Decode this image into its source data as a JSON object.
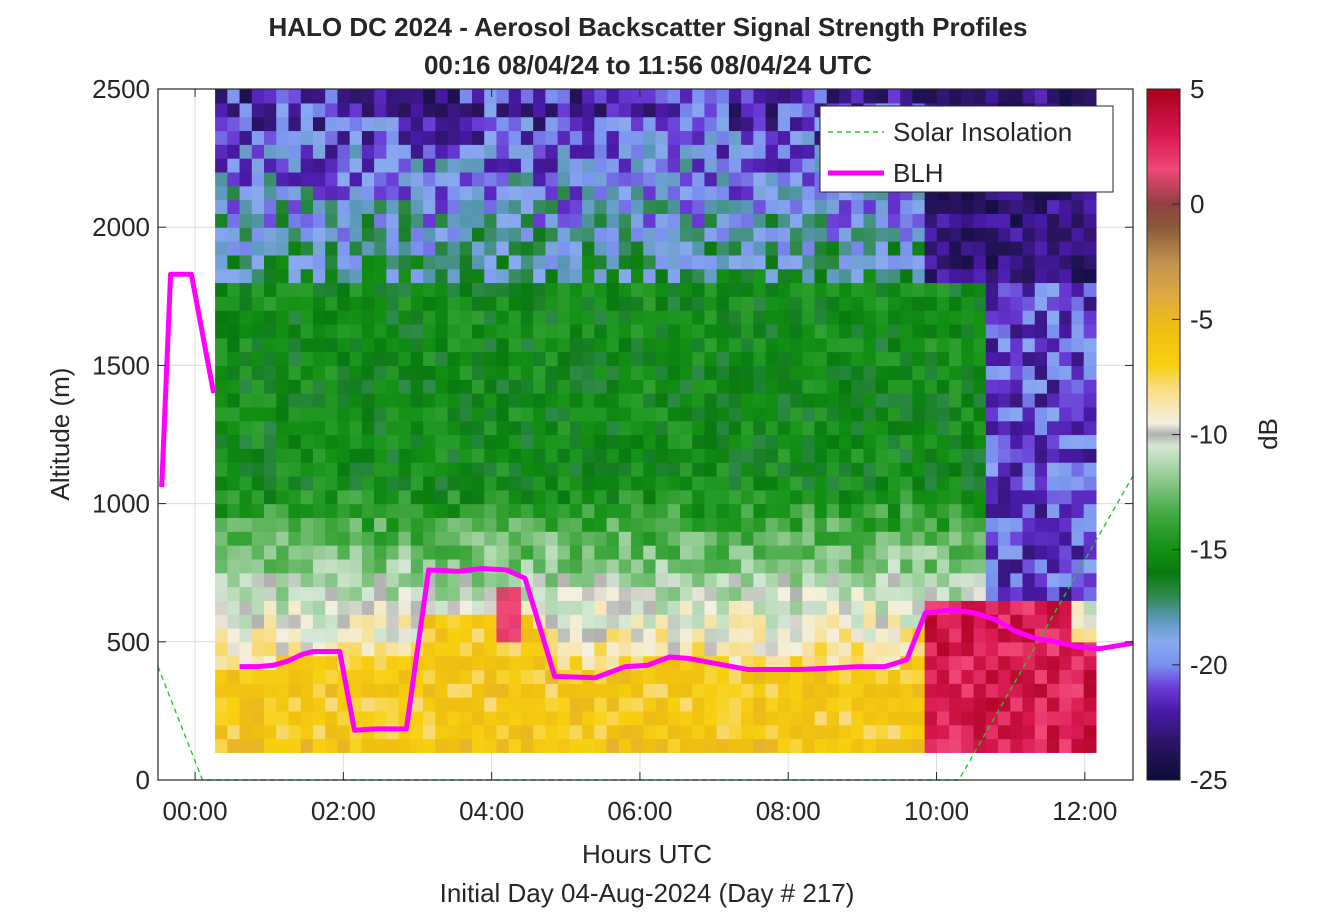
{
  "chart_data": {
    "type": "heatmap",
    "title": "HALO DC 2024 - Aerosol Backscatter Signal Strength Profiles",
    "subtitle": "00:16 08/04/24 to 11:56 08/04/24  UTC",
    "xlabel": "Hours UTC",
    "xlabel2": "Initial Day 04-Aug-2024 (Day # 217)",
    "ylabel": "Altitude (m)",
    "colorbar_label": "dB",
    "xlim": [
      -0.5,
      12.65
    ],
    "ylim": [
      0,
      2500
    ],
    "clim": [
      -25,
      5
    ],
    "x_ticks": [
      0,
      2,
      4,
      6,
      8,
      10,
      12
    ],
    "x_tick_labels": [
      "00:00",
      "02:00",
      "04:00",
      "06:00",
      "08:00",
      "10:00",
      "12:00"
    ],
    "y_ticks": [
      0,
      500,
      1000,
      1500,
      2000,
      2500
    ],
    "y_tick_labels": [
      "0",
      "500",
      "1000",
      "1500",
      "2000",
      "2500"
    ],
    "colorbar_ticks": [
      5,
      0,
      -5,
      -10,
      -15,
      -20,
      -25
    ],
    "colorbar_tick_labels": [
      "5",
      "0",
      "-5",
      "-10",
      "-15",
      "-20",
      "-25"
    ],
    "grid": true,
    "legend_position": "top-right",
    "legend": [
      {
        "label": "Solar Insolation",
        "color": "#22c922",
        "style": "dashed"
      },
      {
        "label": "BLH",
        "color": "#ff00ff",
        "style": "solid"
      }
    ],
    "heatmap": {
      "x_start": 0.27,
      "x_end": 12.0,
      "y_bottom": 100,
      "y_top": 2500,
      "bin_hours": 0.165,
      "bin_height_m": 50
    },
    "series": [
      {
        "name": "BLH",
        "segments": [
          {
            "x": [
              -0.45,
              -0.33,
              -0.05,
              0.25
            ],
            "y": [
              1060,
              1830,
              1830,
              1400
            ]
          },
          {
            "x": [
              0.6,
              0.85,
              1.05,
              1.25,
              1.45,
              1.6,
              1.95,
              2.15,
              2.45,
              2.85,
              3.15,
              3.55,
              3.85,
              4.2,
              4.45,
              4.85,
              5.4,
              5.8,
              6.1,
              6.4,
              6.65,
              6.95,
              7.45,
              7.75,
              8.15,
              8.6,
              8.95,
              9.3,
              9.6,
              9.85,
              10.2,
              10.5,
              10.8,
              11.05,
              11.3,
              11.6,
              11.85,
              12.2,
              12.65
            ],
            "y": [
              410,
              410,
              415,
              430,
              455,
              465,
              465,
              180,
              185,
              185,
              760,
              755,
              765,
              760,
              730,
              375,
              370,
              410,
              415,
              445,
              440,
              425,
              400,
              400,
              400,
              405,
              410,
              410,
              435,
              605,
              615,
              605,
              580,
              540,
              515,
              500,
              485,
              475,
              495
            ]
          }
        ]
      },
      {
        "name": "Solar Insolation",
        "x": [
          -0.5,
          0.1,
          0.25,
          10.3,
          12.65
        ],
        "y": [
          410,
          0,
          0,
          0,
          1100
        ]
      }
    ]
  }
}
